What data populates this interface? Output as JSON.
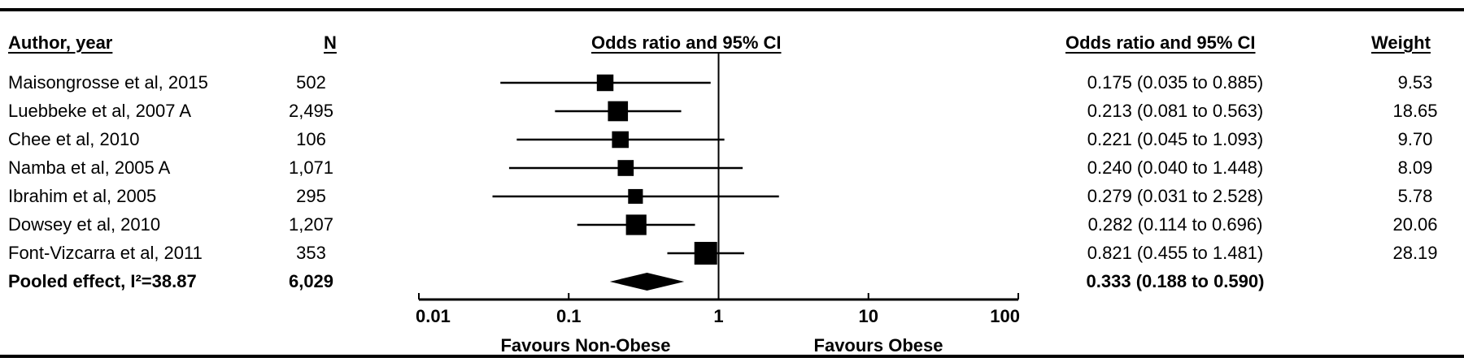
{
  "headers": {
    "author": "Author, year",
    "n": "N",
    "plot": "Odds ratio and 95% CI",
    "ci": "Odds ratio and 95% CI",
    "weight": "Weight"
  },
  "rows": [
    {
      "author": "Maisongrosse et al, 2015",
      "n": "502",
      "ci_text": "0.175 (0.035 to 0.885)",
      "weight": "9.53"
    },
    {
      "author": "Luebbeke et al, 2007 A",
      "n": "2,495",
      "ci_text": "0.213 (0.081 to 0.563)",
      "weight": "18.65"
    },
    {
      "author": "Chee et al, 2010",
      "n": "106",
      "ci_text": "0.221 (0.045 to 1.093)",
      "weight": "9.70"
    },
    {
      "author": "Namba et al, 2005 A",
      "n": "1,071",
      "ci_text": "0.240 (0.040 to 1.448)",
      "weight": "8.09"
    },
    {
      "author": "Ibrahim et al, 2005",
      "n": "295",
      "ci_text": "0.279 (0.031 to 2.528)",
      "weight": "5.78"
    },
    {
      "author": "Dowsey et al, 2010",
      "n": "1,207",
      "ci_text": "0.282 (0.114 to 0.696)",
      "weight": "20.06"
    },
    {
      "author": "Font-Vizcarra et al, 2011",
      "n": "353",
      "ci_text": "0.821 (0.455 to 1.481)",
      "weight": "28.19"
    }
  ],
  "pooled": {
    "author": "Pooled effect, I²=38.87",
    "n": "6,029",
    "ci_text": "0.333 (0.188 to 0.590)"
  },
  "axis": {
    "ticks": [
      0.01,
      0.1,
      1,
      10,
      100
    ],
    "tick_labels": [
      "0.01",
      "0.1",
      "1",
      "10",
      "100"
    ],
    "left_label": "Favours Non-Obese",
    "right_label": "Favours Obese"
  },
  "chart_data": {
    "type": "forest",
    "xscale": "log",
    "xlim": [
      0.01,
      100
    ],
    "reference_line": 1,
    "studies": [
      {
        "label": "Maisongrosse et al, 2015",
        "or": 0.175,
        "lower": 0.035,
        "upper": 0.885,
        "weight": 9.53
      },
      {
        "label": "Luebbeke et al, 2007 A",
        "or": 0.213,
        "lower": 0.081,
        "upper": 0.563,
        "weight": 18.65
      },
      {
        "label": "Chee et al, 2010",
        "or": 0.221,
        "lower": 0.045,
        "upper": 1.093,
        "weight": 9.7
      },
      {
        "label": "Namba et al, 2005 A",
        "or": 0.24,
        "lower": 0.04,
        "upper": 1.448,
        "weight": 8.09
      },
      {
        "label": "Ibrahim et al, 2005",
        "or": 0.279,
        "lower": 0.031,
        "upper": 2.528,
        "weight": 5.78
      },
      {
        "label": "Dowsey et al, 2010",
        "or": 0.282,
        "lower": 0.114,
        "upper": 0.696,
        "weight": 20.06
      },
      {
        "label": "Font-Vizcarra et al, 2011",
        "or": 0.821,
        "lower": 0.455,
        "upper": 1.481,
        "weight": 28.19
      }
    ],
    "pooled": {
      "label": "Pooled effect, I²=38.87",
      "or": 0.333,
      "lower": 0.188,
      "upper": 0.59
    }
  }
}
